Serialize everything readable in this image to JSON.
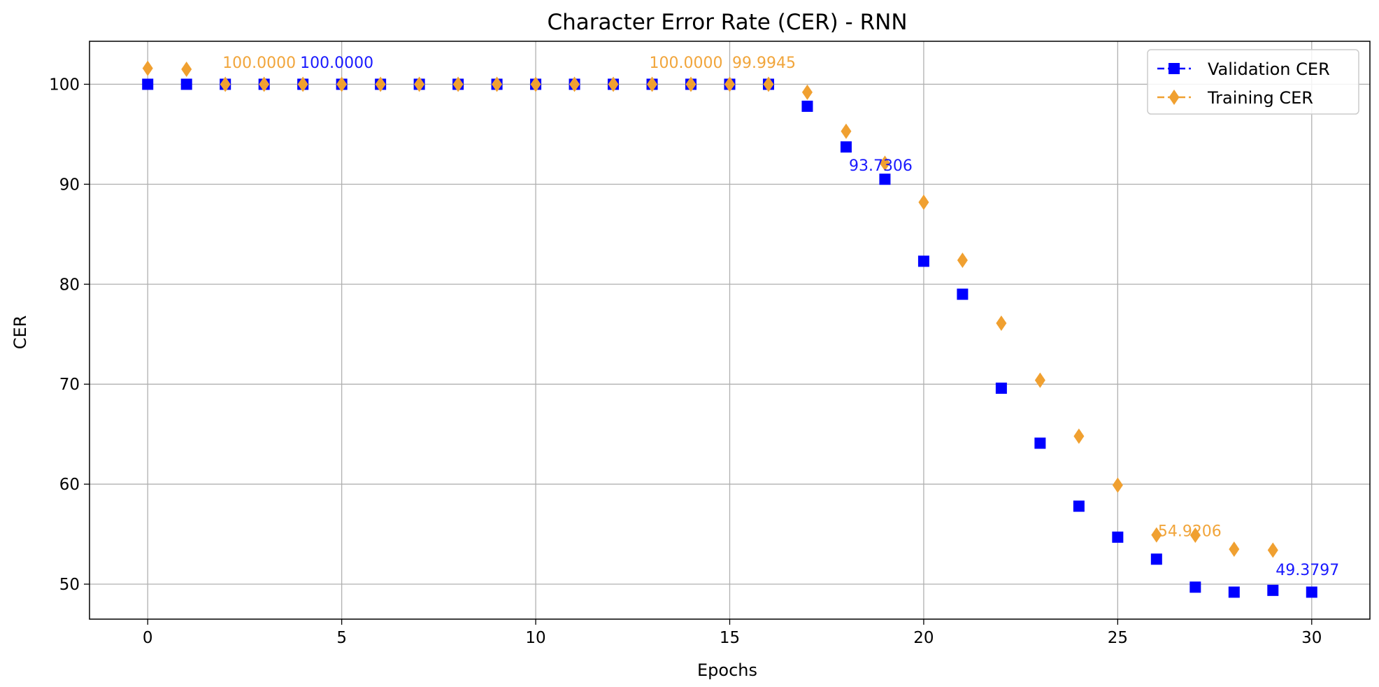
{
  "chart_data": {
    "type": "scatter",
    "title": "Character Error Rate (CER) - RNN",
    "xlabel": "Epochs",
    "ylabel": "CER",
    "xlim": [
      -1.5,
      31.5
    ],
    "ylim": [
      46.5,
      104.3
    ],
    "x_ticks": [
      0,
      5,
      10,
      15,
      20,
      25,
      30
    ],
    "y_ticks": [
      50,
      60,
      70,
      80,
      90,
      100
    ],
    "grid": true,
    "legend_position": "top-right",
    "series": [
      {
        "name": "Validation CER",
        "marker": "square",
        "color": "#0000ff",
        "x": [
          0,
          1,
          2,
          3,
          4,
          5,
          6,
          7,
          8,
          9,
          10,
          11,
          12,
          13,
          14,
          15,
          16,
          17,
          18,
          19,
          20,
          21,
          22,
          23,
          24,
          25,
          26,
          27,
          28,
          29,
          30
        ],
        "values": [
          100,
          100,
          100,
          100,
          100,
          100,
          100,
          100,
          100,
          100,
          100,
          100,
          100,
          100,
          100,
          100,
          100,
          97.8,
          93.7306,
          90.5,
          82.3,
          79.0,
          69.6,
          64.1,
          57.8,
          54.7,
          52.5,
          49.7,
          49.2,
          49.3797,
          49.2
        ]
      },
      {
        "name": "Training CER",
        "marker": "diamond",
        "color": "#f0a030",
        "x": [
          0,
          1,
          2,
          3,
          4,
          5,
          6,
          7,
          8,
          9,
          10,
          11,
          12,
          13,
          14,
          15,
          16,
          17,
          18,
          19,
          20,
          21,
          22,
          23,
          24,
          25,
          26,
          27,
          28,
          29
        ],
        "values": [
          101.6,
          101.5,
          100.0,
          100.0,
          100.0,
          100.0,
          100.0,
          100.0,
          100.0,
          100.0,
          100.0,
          100.0,
          100.0,
          100.0,
          100.0,
          100.0,
          99.9945,
          99.2,
          95.3,
          92.1,
          88.2,
          82.4,
          76.1,
          70.4,
          64.8,
          59.9,
          54.9206,
          54.9,
          53.5,
          53.4
        ]
      }
    ],
    "annotations": [
      {
        "text": "100.0000",
        "x": 2,
        "y": 100.0,
        "series": "Training CER"
      },
      {
        "text": "100.0000",
        "x": 4,
        "y": 100.0,
        "series": "Validation CER"
      },
      {
        "text": "100.0000",
        "x": 13,
        "y": 100.0,
        "series": "Training CER"
      },
      {
        "text": "99.9945",
        "x": 16,
        "y": 99.9945,
        "series": "Training CER"
      },
      {
        "text": "93.7306",
        "x": 18,
        "y": 93.7306,
        "series": "Validation CER"
      },
      {
        "text": "54.9206",
        "x": 26,
        "y": 54.9206,
        "series": "Training CER"
      },
      {
        "text": "49.3797",
        "x": 29,
        "y": 49.3797,
        "series": "Validation CER"
      }
    ]
  }
}
